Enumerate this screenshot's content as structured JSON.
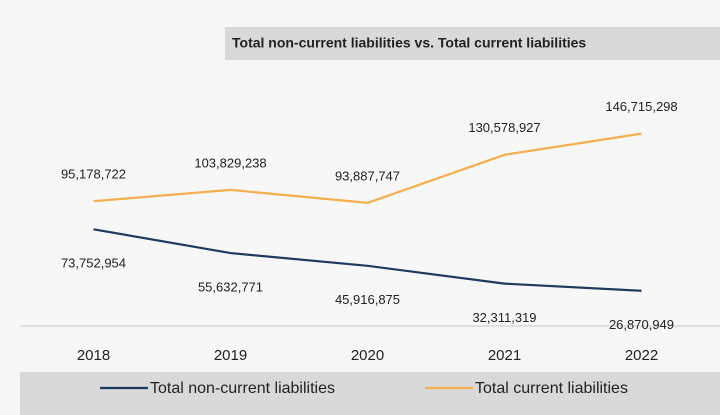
{
  "chart_data": {
    "type": "line",
    "title": "Total non-current liabilities vs. Total current liabilities",
    "categories": [
      "2018",
      "2019",
      "2020",
      "2021",
      "2022"
    ],
    "series": [
      {
        "name": "Total non-current liabilities",
        "color": "#1f3a5f",
        "values": [
          73752954,
          55632771,
          45916875,
          32311319,
          26870949
        ],
        "value_labels": [
          "73,752,954",
          "55,632,771",
          "45,916,875",
          "32,311,319",
          "26,870,949"
        ]
      },
      {
        "name": "Total current liabilities",
        "color": "#f5ae4b",
        "values": [
          95178722,
          103829238,
          93887747,
          130578927,
          146715298
        ],
        "value_labels": [
          "95,178,722",
          "103,829,238",
          "93,887,747",
          "130,578,927",
          "146,715,298"
        ]
      }
    ],
    "ylim": [
      0,
      180000000
    ]
  }
}
